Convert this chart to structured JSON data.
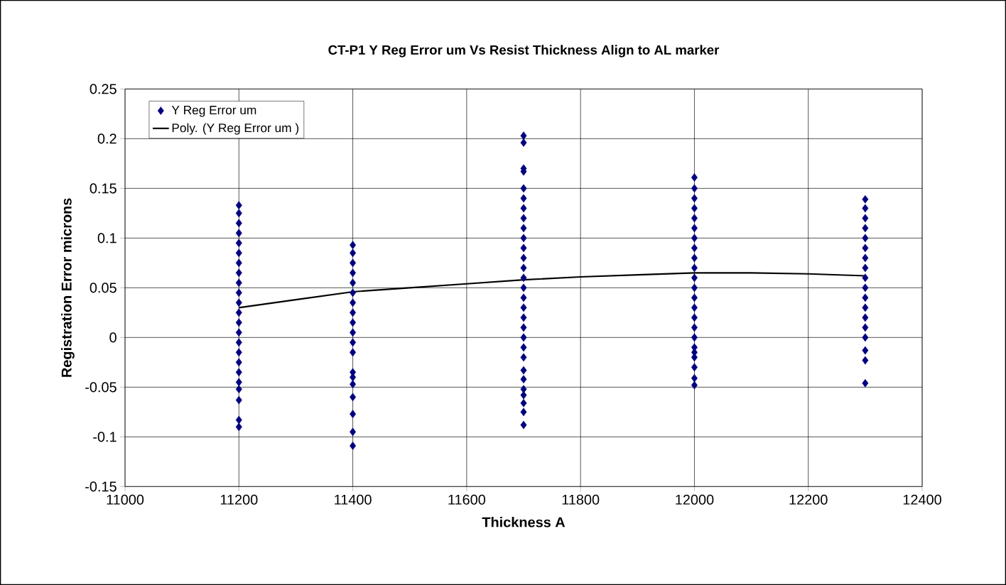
{
  "chart_data": {
    "type": "scatter",
    "title": "CT-P1 Y Reg Error um Vs Resist Thickness Align to AL marker",
    "xlabel": "Thickness A",
    "ylabel": "Registration Error microns",
    "xlim": [
      11000,
      12400
    ],
    "xticks": [
      11000,
      11200,
      11400,
      11600,
      11800,
      12000,
      12200,
      12400
    ],
    "ylim": [
      -0.15,
      0.25
    ],
    "yticks": [
      -0.15,
      -0.1,
      -0.05,
      0,
      0.05,
      0.1,
      0.15,
      0.2,
      0.25
    ],
    "grid": true,
    "legend": "top left",
    "marker": "diamond",
    "series": [
      {
        "name": "Y Reg Error um",
        "color": "#000080",
        "x": [
          11200,
          11200,
          11200,
          11200,
          11200,
          11200,
          11200,
          11200,
          11200,
          11200,
          11200,
          11200,
          11200,
          11200,
          11200,
          11200,
          11200,
          11200,
          11200,
          11200,
          11200,
          11200,
          11200,
          11400,
          11400,
          11400,
          11400,
          11400,
          11400,
          11400,
          11400,
          11400,
          11400,
          11400,
          11400,
          11400,
          11400,
          11400,
          11400,
          11400,
          11400,
          11400,
          11700,
          11700,
          11700,
          11700,
          11700,
          11700,
          11700,
          11700,
          11700,
          11700,
          11700,
          11700,
          11700,
          11700,
          11700,
          11700,
          11700,
          11700,
          11700,
          11700,
          11700,
          11700,
          11700,
          11700,
          11700,
          11700,
          11700,
          11700,
          11700,
          12000,
          12000,
          12000,
          12000,
          12000,
          12000,
          12000,
          12000,
          12000,
          12000,
          12000,
          12000,
          12000,
          12000,
          12000,
          12000,
          12000,
          12000,
          12000,
          12000,
          12000,
          12000,
          12000,
          12300,
          12300,
          12300,
          12300,
          12300,
          12300,
          12300,
          12300,
          12300,
          12300,
          12300,
          12300,
          12300,
          12300,
          12300,
          12300,
          12300,
          12300
        ],
        "values": [
          0.133,
          0.125,
          0.115,
          0.105,
          0.095,
          0.085,
          0.075,
          0.065,
          0.055,
          0.045,
          0.035,
          0.025,
          0.015,
          0.005,
          -0.005,
          -0.015,
          -0.025,
          -0.035,
          -0.045,
          -0.052,
          -0.063,
          -0.083,
          -0.09,
          0.093,
          0.085,
          0.075,
          0.065,
          0.055,
          0.045,
          0.035,
          0.025,
          0.015,
          0.005,
          -0.005,
          -0.015,
          -0.035,
          -0.04,
          -0.047,
          -0.06,
          -0.077,
          -0.095,
          -0.109,
          0.203,
          0.196,
          0.17,
          0.167,
          0.15,
          0.14,
          0.13,
          0.12,
          0.11,
          0.1,
          0.09,
          0.08,
          0.07,
          0.06,
          0.05,
          0.04,
          0.03,
          0.02,
          0.01,
          0,
          -0.01,
          -0.02,
          -0.033,
          -0.042,
          -0.052,
          -0.058,
          -0.066,
          -0.075,
          -0.088,
          0.161,
          0.15,
          0.14,
          0.13,
          0.12,
          0.11,
          0.1,
          0.09,
          0.08,
          0.07,
          0.06,
          0.05,
          0.04,
          0.03,
          0.02,
          0.01,
          0,
          -0.01,
          -0.015,
          -0.02,
          -0.03,
          -0.041,
          -0.048,
          0.139,
          0.13,
          0.12,
          0.11,
          0.1,
          0.09,
          0.08,
          0.07,
          0.06,
          0.05,
          0.04,
          0.03,
          0.02,
          0.01,
          0,
          -0.013,
          -0.023,
          -0.046
        ]
      },
      {
        "name": "Poly. (Y Reg Error um )",
        "type": "line",
        "color": "#000000",
        "marker": "none",
        "line_style": "solid",
        "x": [
          11200,
          11300,
          11400,
          11500,
          11600,
          11700,
          11800,
          11900,
          12000,
          12100,
          12200,
          12300
        ],
        "values": [
          0.03,
          0.038,
          0.046,
          0.05,
          0.054,
          0.058,
          0.061,
          0.063,
          0.065,
          0.065,
          0.064,
          0.062
        ]
      }
    ]
  }
}
